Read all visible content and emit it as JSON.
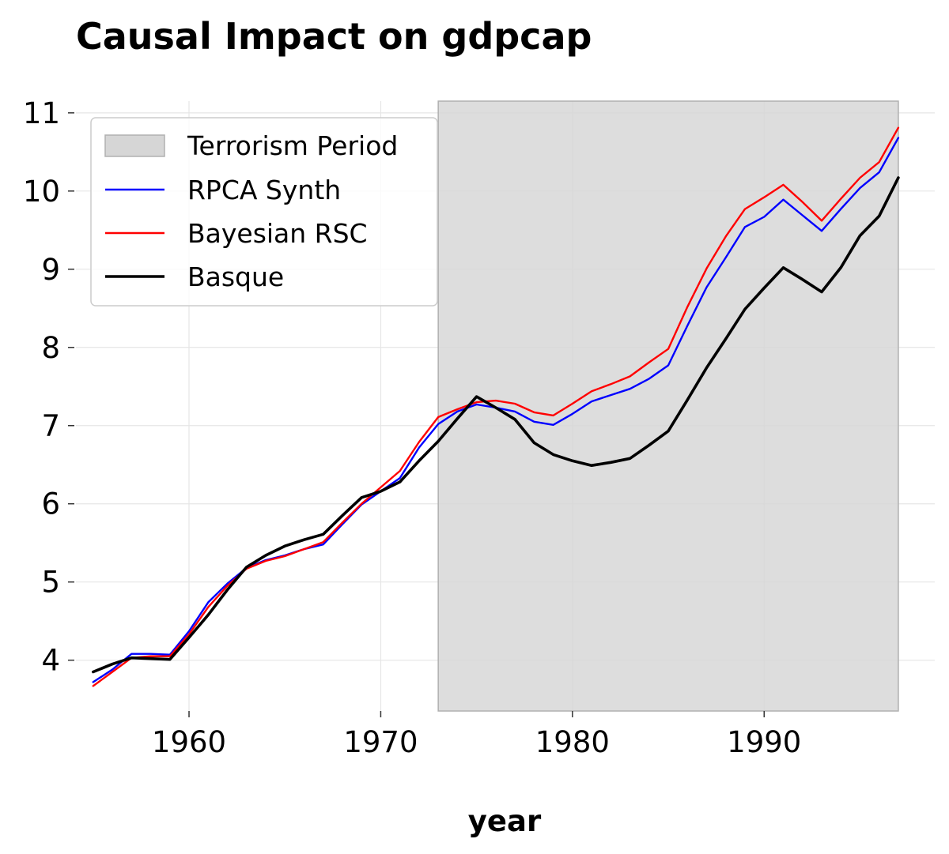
{
  "chart_data": {
    "type": "line",
    "title": "Causal Impact on gdpcap",
    "xlabel": "year",
    "ylabel": "",
    "xlim": [
      1954.1,
      1998.9
    ],
    "ylim": [
      3.35,
      11.15
    ],
    "x_ticks": [
      1960,
      1970,
      1980,
      1990
    ],
    "y_ticks": [
      4,
      5,
      6,
      7,
      8,
      9,
      10,
      11
    ],
    "grid": true,
    "legend_position": "top-left",
    "shaded_region": {
      "label": "Terrorism Period",
      "x_start": 1973,
      "x_end": 1997,
      "color": "#d6d6d6"
    },
    "x": [
      1955,
      1956,
      1957,
      1958,
      1959,
      1960,
      1961,
      1962,
      1963,
      1964,
      1965,
      1966,
      1967,
      1968,
      1969,
      1970,
      1971,
      1972,
      1973,
      1974,
      1975,
      1976,
      1977,
      1978,
      1979,
      1980,
      1981,
      1982,
      1983,
      1984,
      1985,
      1986,
      1987,
      1988,
      1989,
      1990,
      1991,
      1992,
      1993,
      1994,
      1995,
      1996,
      1997
    ],
    "series": [
      {
        "name": "RPCA Synth",
        "color": "#0000ff",
        "width": 2.4,
        "values": [
          3.72,
          3.88,
          4.08,
          4.08,
          4.07,
          4.37,
          4.74,
          4.98,
          5.18,
          5.28,
          5.34,
          5.42,
          5.48,
          5.74,
          5.99,
          6.16,
          6.33,
          6.72,
          7.02,
          7.18,
          7.27,
          7.23,
          7.18,
          7.05,
          7.01,
          7.15,
          7.31,
          7.39,
          7.47,
          7.6,
          7.77,
          8.28,
          8.77,
          9.15,
          9.54,
          9.67,
          9.89,
          9.69,
          9.49,
          9.77,
          10.04,
          10.24,
          10.68
        ]
      },
      {
        "name": "Bayesian RSC",
        "color": "#ff0000",
        "width": 2.4,
        "values": [
          3.67,
          3.85,
          4.03,
          4.05,
          4.05,
          4.33,
          4.68,
          4.95,
          5.17,
          5.27,
          5.33,
          5.42,
          5.51,
          5.76,
          6.0,
          6.21,
          6.42,
          6.79,
          7.11,
          7.21,
          7.3,
          7.32,
          7.28,
          7.17,
          7.13,
          7.28,
          7.44,
          7.53,
          7.63,
          7.81,
          7.98,
          8.52,
          9.01,
          9.42,
          9.77,
          9.92,
          10.08,
          9.86,
          9.62,
          9.9,
          10.17,
          10.37,
          10.81
        ]
      },
      {
        "name": "Basque",
        "color": "#000000",
        "width": 3.6,
        "values": [
          3.85,
          3.95,
          4.03,
          4.02,
          4.01,
          4.29,
          4.58,
          4.9,
          5.19,
          5.34,
          5.46,
          5.54,
          5.61,
          5.85,
          6.08,
          6.16,
          6.28,
          6.55,
          6.8,
          7.09,
          7.37,
          7.23,
          7.08,
          6.78,
          6.63,
          6.55,
          6.49,
          6.53,
          6.58,
          6.75,
          6.93,
          7.33,
          7.74,
          8.11,
          8.49,
          8.76,
          9.02,
          8.87,
          8.71,
          9.02,
          9.43,
          9.68,
          10.17
        ]
      }
    ]
  }
}
